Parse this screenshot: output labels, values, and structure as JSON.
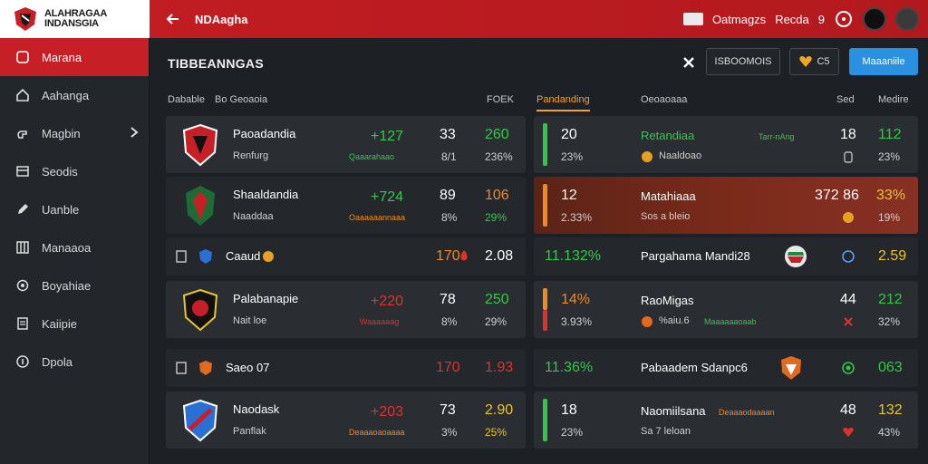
{
  "brand": {
    "line1": "ALAHRAGAA",
    "line2": "INDANSGIA"
  },
  "header": {
    "title": "NDAagha",
    "user": "Oatmagzs",
    "user2": "Recda",
    "user_num": "9"
  },
  "sidebar": {
    "items": [
      {
        "label": "Marana",
        "icon": "home-icon"
      },
      {
        "label": "Aahanga",
        "icon": "house-icon"
      },
      {
        "label": "Magbin",
        "icon": "hand-icon"
      },
      {
        "label": "Seodis",
        "icon": "table-icon"
      },
      {
        "label": "Uanble",
        "icon": "pen-icon"
      },
      {
        "label": "Manaaoa",
        "icon": "grid-icon"
      },
      {
        "label": "Boyahiae",
        "icon": "gear-icon"
      },
      {
        "label": "Kaiipie",
        "icon": "doc-icon"
      },
      {
        "label": "Dpola",
        "icon": "info-icon"
      }
    ]
  },
  "main": {
    "title": "TIBBEANNGAS",
    "actions": {
      "filter_label": "ISBOOMOIS",
      "fav_label": "C5",
      "primary_label": "Maaaniile"
    },
    "left_headers": {
      "col1": "Dabable",
      "col2": "Bo Geoaoia",
      "col3": "FOEK"
    },
    "right_headers": {
      "tab": "Pandanding",
      "col2": "Oeoaoaaa",
      "col3": "Sed",
      "col4": "Medire"
    }
  },
  "left_rows": [
    {
      "name": "Paoadandia",
      "sub": "Renfurg",
      "odd": "+127",
      "tag": "Qaaarahaao",
      "n1": "33",
      "n1b": "8/1",
      "n2": "260",
      "p2": "236%"
    },
    {
      "name": "Shaaldandia",
      "sub": "Naaddaa",
      "odd": "+724",
      "tag": "Oaaaaaannaaa",
      "n1": "89",
      "n1b": "8%",
      "n2": "106",
      "p2": "29%"
    },
    {
      "name": "Caaud",
      "sub": "",
      "odd": "170",
      "tag": "",
      "n1": "",
      "n1b": "",
      "n2": "2.08",
      "p2": ""
    },
    {
      "name": "Palabanapie",
      "sub": "Nait loe",
      "odd": "+220",
      "tag": "Waaaaaag",
      "n1": "78",
      "n1b": "8%",
      "n2": "250",
      "p2": "29%"
    },
    {
      "name": "Saeo 07",
      "sub": "",
      "odd": "170",
      "tag": "",
      "n1": "",
      "n1b": "",
      "n2": "1.93",
      "p2": ""
    },
    {
      "name": "Naodask",
      "sub": "Panflak",
      "odd": "+203",
      "tag": "Deaaaoaoaaaa",
      "n1": "73",
      "n1b": "3%",
      "n2": "2.90",
      "p2": "25%"
    }
  ],
  "right_rows": [
    {
      "n1": "20",
      "p1": "23%",
      "name": "Retandiaa",
      "sub": "Naaldoao",
      "tag": "Tarr-nAng",
      "n2": "18",
      "p2": "",
      "n3": "112",
      "p3": "23%"
    },
    {
      "n1": "12",
      "p1": "2.33%",
      "name": "Matahiaaa",
      "sub": "Sos a bleio",
      "tag": "",
      "n2": "372 86",
      "p2": "",
      "n3": "33%",
      "p3": "19%"
    },
    {
      "n1": "11.132%",
      "p1": "",
      "name": "Pargahama Mandi28",
      "sub": "",
      "tag": "",
      "n2": "",
      "p2": "",
      "n3": "2.59",
      "p3": ""
    },
    {
      "n1": "14%",
      "p1": "3.93%",
      "name": "RaoMigas",
      "sub": "%aiu.6",
      "tag": "Maaaaaaoaab",
      "n2": "44",
      "p2": "",
      "n3": "212",
      "p3": "32%"
    },
    {
      "n1": "11.36%",
      "p1": "",
      "name": "Pabaadem Sdanpc6",
      "sub": "",
      "tag": "",
      "n2": "",
      "p2": "",
      "n3": "063",
      "p3": ""
    },
    {
      "n1": "18",
      "p1": "23%",
      "name": "Naomiilsana",
      "sub": "Sa 7 leloan",
      "tag": "Deaaaodaaaan",
      "n2": "48",
      "p2": "",
      "n3": "132",
      "p3": "43%"
    }
  ],
  "colors": {
    "accent": "#c62026",
    "primary": "#2a90e0",
    "green": "#31c84a",
    "orange": "#f08a1d",
    "tab": "#f2a623"
  }
}
